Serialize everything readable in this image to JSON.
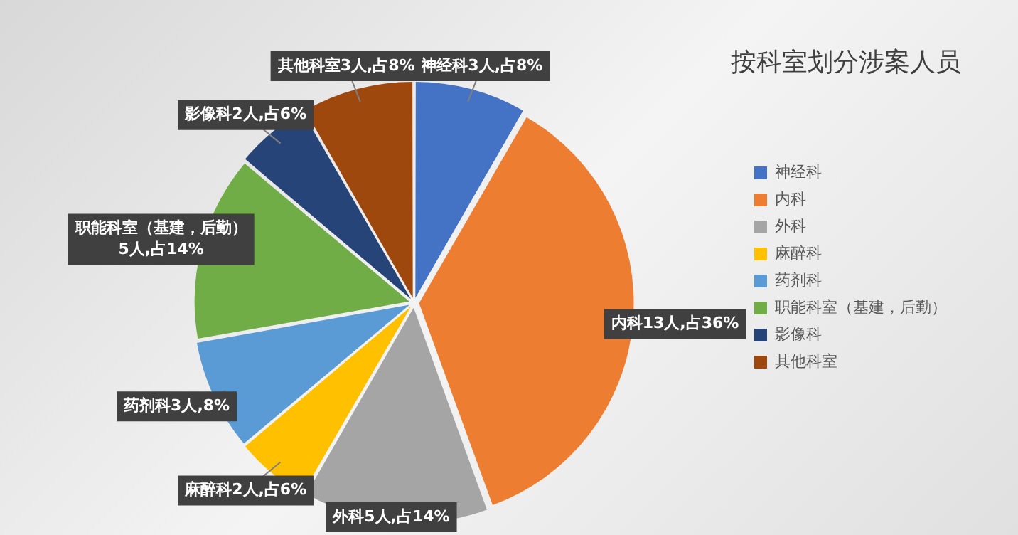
{
  "chart_data": {
    "type": "pie",
    "title": "按科室划分涉案人员",
    "categories": [
      "神经科",
      "内科",
      "外科",
      "麻醉科",
      "药剂科",
      "职能科室（基建，后勤）",
      "影像科",
      "其他科室"
    ],
    "values": [
      3,
      13,
      5,
      2,
      3,
      5,
      2,
      3
    ],
    "colors": [
      "#4472c4",
      "#ed7d31",
      "#a5a5a5",
      "#ffc000",
      "#5b9bd5",
      "#70ad47",
      "#264478",
      "#9e480e"
    ],
    "value_labels": [
      "神经科3人,占8%",
      "内科13人,占36%",
      "外科5人,占14%",
      "麻醉科2人,占6%",
      "药剂科3人,8%",
      "职能科室（基建，后勤）\n5人,占14%",
      "影像科2人,占6%",
      "其他科室3人,占8%"
    ],
    "legend": "right"
  }
}
